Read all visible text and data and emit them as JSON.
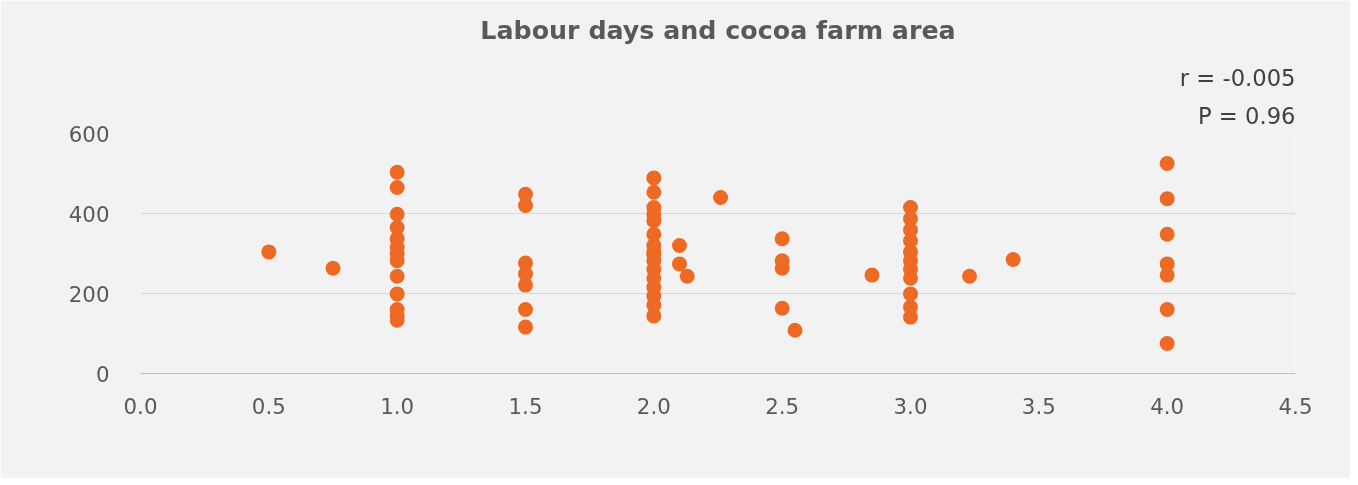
{
  "chart_data": {
    "type": "scatter",
    "title": "Labour days and cocoa farm area",
    "x": [
      0.5,
      0.75,
      1,
      1,
      1,
      1,
      1,
      1,
      1,
      1,
      1,
      1,
      1,
      1,
      1,
      1.5,
      1.5,
      1.5,
      1.5,
      1.5,
      1.5,
      1.5,
      2,
      2,
      2,
      2,
      2,
      2,
      2,
      2,
      2,
      2,
      2,
      2,
      2,
      2,
      2,
      2,
      2.1,
      2.1,
      2.13,
      2.26,
      2.5,
      2.5,
      2.5,
      2.5,
      2.55,
      2.85,
      3,
      3,
      3,
      3,
      3,
      3,
      3,
      3,
      3,
      3,
      3,
      3.23,
      3.4,
      4,
      4,
      4,
      4,
      4,
      4,
      4
    ],
    "series": [
      {
        "color": "#ee6a24",
        "values": [
          304,
          263,
          503,
          465,
          398,
          365,
          337,
          315,
          299,
          282,
          243,
          199,
          160,
          144,
          133,
          448,
          420,
          276,
          249,
          221,
          160,
          116,
          489,
          453,
          415,
          398,
          382,
          348,
          320,
          304,
          298,
          282,
          260,
          238,
          216,
          194,
          171,
          144,
          320,
          274,
          243,
          440,
          337,
          282,
          263,
          163,
          108,
          246,
          415,
          387,
          359,
          332,
          304,
          282,
          260,
          238,
          199,
          166,
          141,
          243,
          285,
          525,
          437,
          348,
          274,
          246,
          160,
          75
        ]
      }
    ],
    "xlim": [
      0,
      4.5
    ],
    "ylim": [
      0,
      600
    ],
    "xticks": [
      {
        "value": 0,
        "label": "0.0"
      },
      {
        "value": 0.5,
        "label": "0.5"
      },
      {
        "value": 1,
        "label": "1.0"
      },
      {
        "value": 1.5,
        "label": "1.5"
      },
      {
        "value": 2,
        "label": "2.0"
      },
      {
        "value": 2.5,
        "label": "2.5"
      },
      {
        "value": 3,
        "label": "3.0"
      },
      {
        "value": 3.5,
        "label": "3.5"
      },
      {
        "value": 4,
        "label": "4.0"
      },
      {
        "value": 4.5,
        "label": "4.5"
      }
    ],
    "yticks": [
      0,
      200,
      400,
      600
    ],
    "grid": "y",
    "marker": "circle",
    "annotations": [
      "r = -0.005",
      "P = 0.96"
    ]
  }
}
